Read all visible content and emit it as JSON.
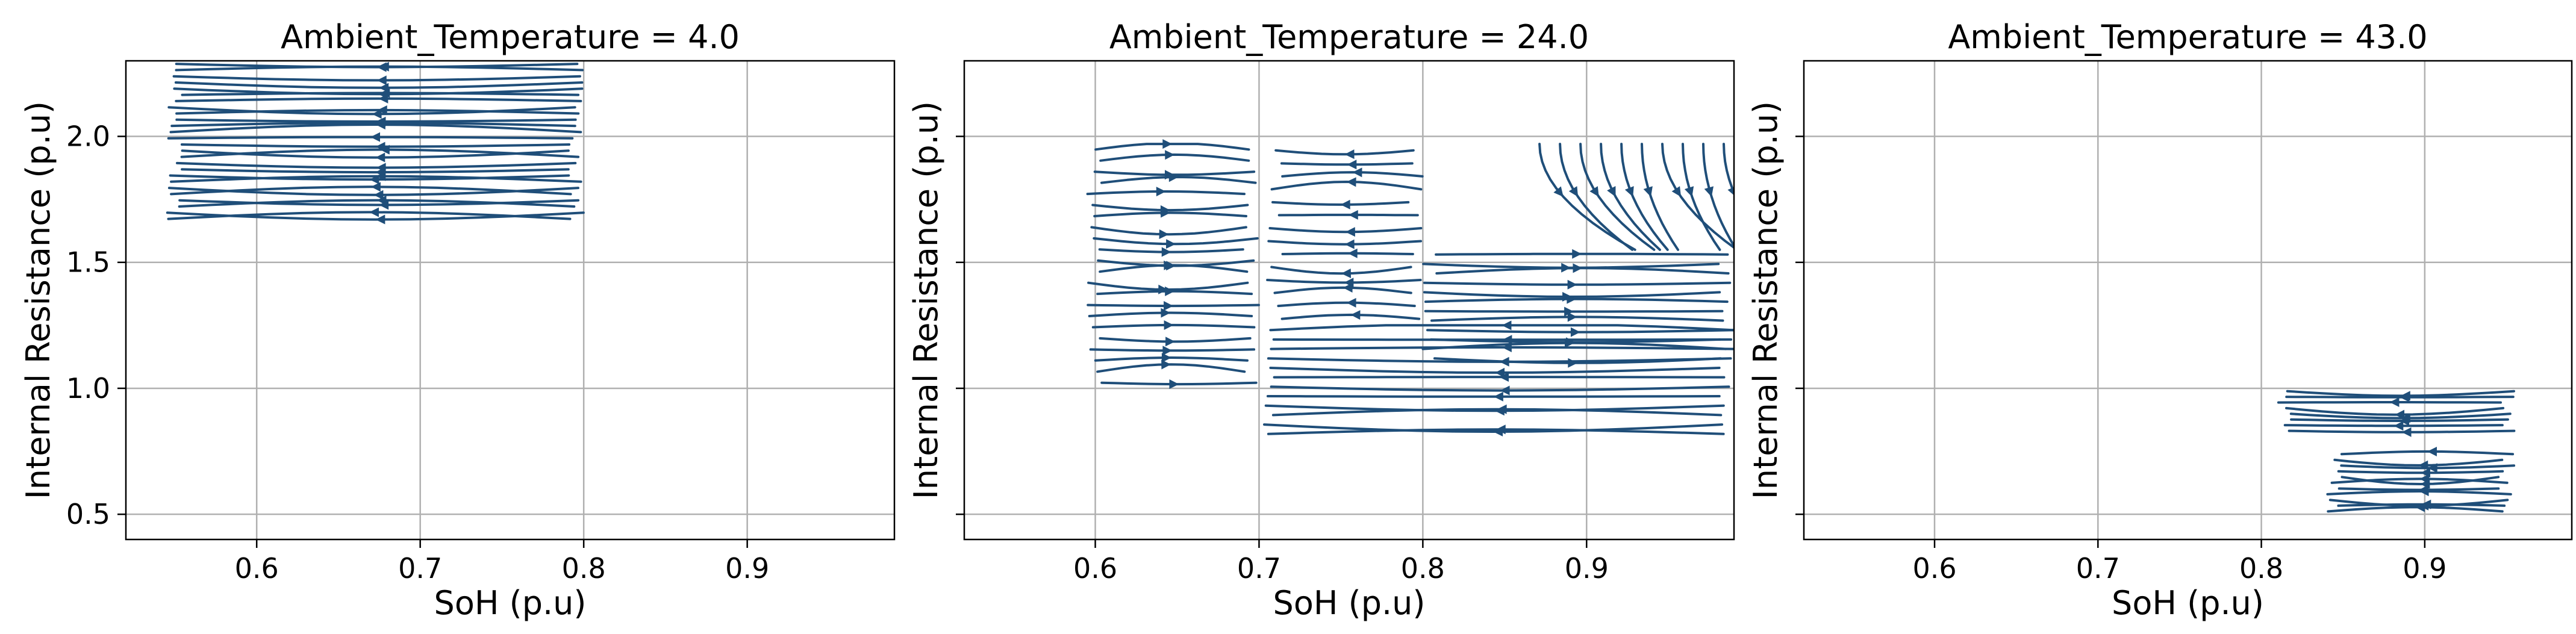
{
  "figure": {
    "stream_color": "#1f4e79"
  },
  "chart_data": [
    {
      "type": "streamplot",
      "title": "Ambient_Temperature = 4.0",
      "xlabel": "SoH (p.u)",
      "ylabel": "Internal Resistance (p.u)",
      "xlim": [
        0.52,
        0.99
      ],
      "ylim": [
        0.4,
        2.3
      ],
      "xticks": [
        0.6,
        0.7,
        0.8,
        0.9
      ],
      "xtick_labels": [
        "0.6",
        "0.7",
        "0.8",
        "0.9"
      ],
      "yticks": [
        0.5,
        1.0,
        1.5,
        2.0
      ],
      "ytick_labels": [
        "0.5",
        "1.0",
        "1.5",
        "2.0"
      ],
      "show_ytick_labels": true,
      "grid": true,
      "regions": [
        {
          "x": [
            0.545,
            0.8
          ],
          "y": [
            1.66,
            2.3
          ],
          "direction": "left",
          "count": 26
        }
      ]
    },
    {
      "type": "streamplot",
      "title": "Ambient_Temperature = 24.0",
      "xlabel": "SoH (p.u)",
      "ylabel": "Internal Resistance (p.u)",
      "xlim": [
        0.52,
        0.99
      ],
      "ylim": [
        0.4,
        2.3
      ],
      "xticks": [
        0.6,
        0.7,
        0.8,
        0.9
      ],
      "xtick_labels": [
        "0.6",
        "0.7",
        "0.8",
        "0.9"
      ],
      "yticks": [
        0.5,
        1.0,
        1.5,
        2.0
      ],
      "ytick_labels": [
        "0.5",
        "1.0",
        "1.5",
        "2.0"
      ],
      "show_ytick_labels": false,
      "grid": true,
      "regions": [
        {
          "x": [
            0.595,
            0.7
          ],
          "y": [
            1.0,
            1.97
          ],
          "direction": "right",
          "count": 22
        },
        {
          "x": [
            0.705,
            0.8
          ],
          "y": [
            1.25,
            1.97
          ],
          "direction": "left",
          "count": 14
        },
        {
          "x": [
            0.7,
            0.99
          ],
          "y": [
            0.8,
            1.25
          ],
          "direction": "left",
          "count": 12
        },
        {
          "x": [
            0.8,
            0.99
          ],
          "y": [
            1.1,
            1.55
          ],
          "direction": "right",
          "count": 12
        },
        {
          "x": [
            0.865,
            0.99
          ],
          "y": [
            1.55,
            1.97
          ],
          "direction": "down",
          "count": 10
        }
      ]
    },
    {
      "type": "streamplot",
      "title": "Ambient_Temperature = 43.0",
      "xlabel": "SoH (p.u)",
      "ylabel": "Internal Resistance (p.u)",
      "xlim": [
        0.52,
        0.99
      ],
      "ylim": [
        0.4,
        2.3
      ],
      "xticks": [
        0.6,
        0.7,
        0.8,
        0.9
      ],
      "xtick_labels": [
        "0.6",
        "0.7",
        "0.8",
        "0.9"
      ],
      "yticks": [
        0.5,
        1.0,
        1.5,
        2.0
      ],
      "ytick_labels": [
        "0.5",
        "1.0",
        "1.5",
        "2.0"
      ],
      "show_ytick_labels": false,
      "grid": true,
      "regions": [
        {
          "x": [
            0.81,
            0.955
          ],
          "y": [
            0.82,
            1.0
          ],
          "direction": "left",
          "count": 8
        },
        {
          "x": [
            0.84,
            0.955
          ],
          "y": [
            0.5,
            0.75
          ],
          "direction": "left",
          "count": 11
        }
      ]
    }
  ]
}
